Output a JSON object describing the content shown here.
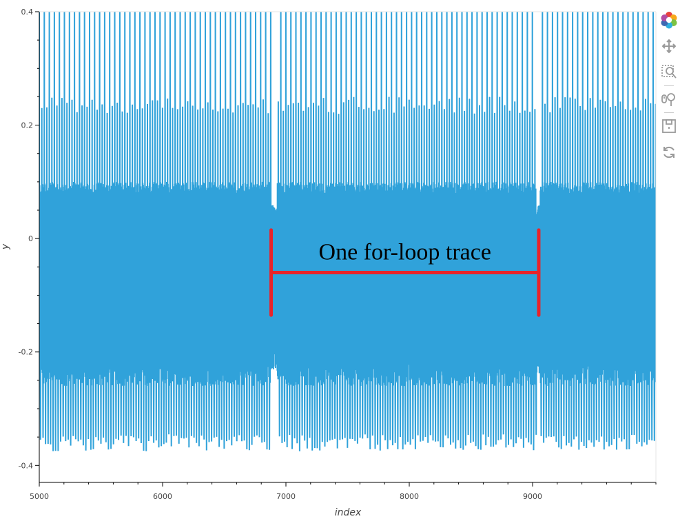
{
  "chart_data": {
    "type": "line",
    "title": "",
    "xlabel": "index",
    "ylabel": "y",
    "xlim": [
      5000,
      10000
    ],
    "ylim": [
      -0.43,
      0.4
    ],
    "x_ticks": [
      5000,
      6000,
      7000,
      8000,
      9000
    ],
    "x_tick_labels": [
      "5000",
      "6000",
      "7000",
      "8000",
      "9000"
    ],
    "y_ticks": [
      0.4,
      0.2,
      0,
      -0.2,
      -0.4
    ],
    "y_tick_labels": [
      "0.4",
      "0.2",
      "0",
      "-0.2",
      "-0.4"
    ],
    "grid": false,
    "series": [
      {
        "color": "#30a2da",
        "description_values": {
          "x_start": 5000,
          "x_end": 10000,
          "dense_band_min": -0.2,
          "dense_band_max": 0.1,
          "spike_high_typical": 0.4,
          "spike_high_mid": 0.22,
          "spike_low_typical": -0.36,
          "quiet_gaps_x": [
            [
              6880,
              6930
            ],
            [
              9030,
              9060
            ]
          ]
        }
      }
    ],
    "annotations": [
      {
        "text": "One for-loop trace",
        "x_start": 6880,
        "x_end": 9050,
        "y_bar": -0.06,
        "y_top": 0.015,
        "y_bottom": -0.135,
        "color": "#e8232a"
      }
    ]
  },
  "toolbar": {
    "tools": [
      {
        "name": "bokeh-logo-icon"
      },
      {
        "name": "pan-icon"
      },
      {
        "name": "box-zoom-icon"
      },
      {
        "name": "wheel-zoom-icon"
      },
      {
        "name": "save-icon"
      },
      {
        "name": "reset-icon"
      }
    ]
  }
}
